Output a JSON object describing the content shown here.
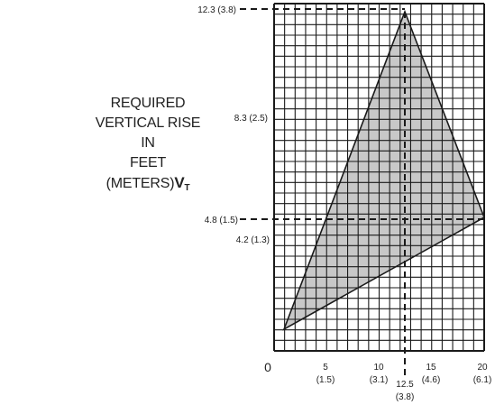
{
  "axis_label": {
    "line1": "REQUIRED",
    "line2": "VERTICAL RISE IN",
    "line3": "FEET  (METERS)",
    "symbol": "V",
    "subscript": "T"
  },
  "y_ticks": [
    {
      "label": "12.3 (3.8)"
    },
    {
      "label": "8.3 (2.5)"
    },
    {
      "label": "4.8 (1.5)"
    },
    {
      "label": "4.2 (1.3)"
    }
  ],
  "x_ticks": [
    {
      "line1": "0",
      "line2": ""
    },
    {
      "line1": "5",
      "line2": "(1.5)"
    },
    {
      "line1": "10",
      "line2": "(3.1)"
    },
    {
      "line1": "15",
      "line2": "(4.6)"
    },
    {
      "line1": "20",
      "line2": "(6.1)"
    }
  ],
  "x_marker": {
    "line1": "12.5",
    "line2": "(3.8)"
  },
  "colors": {
    "grid": "#1a1a1a",
    "triangle_fill": "#c8c8c8",
    "triangle_stroke": "#1a1a1a",
    "text": "#222222"
  }
}
